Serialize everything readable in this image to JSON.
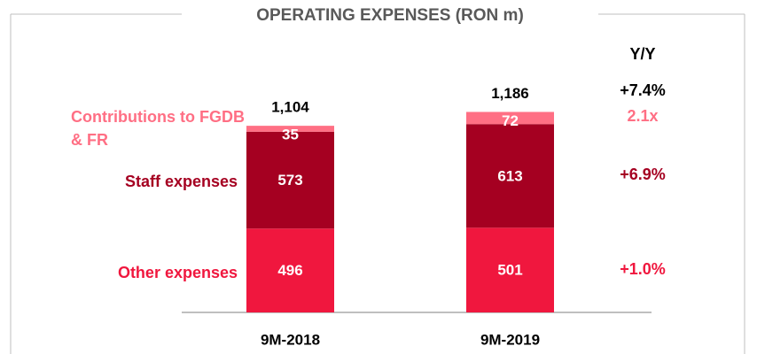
{
  "chart_data": {
    "type": "stacked_bar",
    "title": "OPERATING EXPENSES (RON m)",
    "categories": [
      "9M-2018",
      "9M-2019"
    ],
    "series": [
      {
        "name": "Other expenses",
        "color": "#f0173e",
        "values": [
          496,
          501
        ],
        "yoy": "+1.0%"
      },
      {
        "name": "Staff expenses",
        "color": "#a50021",
        "values": [
          573,
          613
        ],
        "yoy": "+6.9%"
      },
      {
        "name": "Contributions to FGDB & FR",
        "color": "#ff6f84",
        "values": [
          35,
          72
        ],
        "yoy": "2.1x"
      }
    ],
    "totals": {
      "values": [
        1104,
        1186
      ],
      "value_labels": [
        "1,104",
        "1,186"
      ],
      "yoy": "+7.4%"
    },
    "yoy_title": "Y/Y"
  }
}
